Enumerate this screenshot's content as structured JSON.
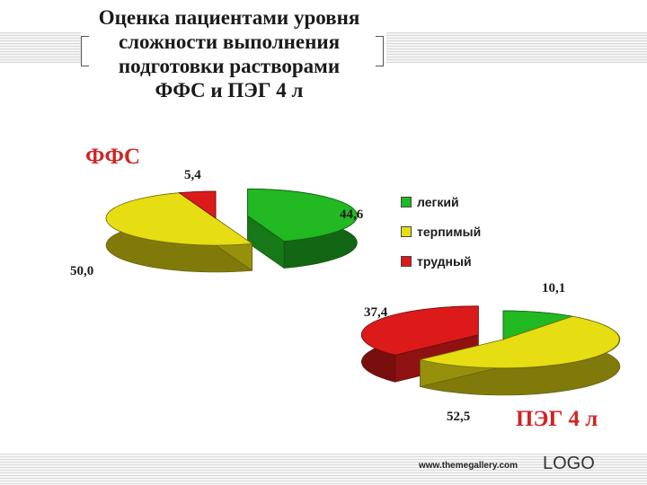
{
  "slide": {
    "title": "Оценка пациентами уровня\nсложности выполнения\nподготовки растворами\nФФС и ПЭГ 4 л",
    "footer_url": "www.themegallery.com",
    "footer_logo": "LOGO"
  },
  "colors": {
    "green": "#22b922",
    "yellow": "#e6dd12",
    "red": "#dc1a1a",
    "title_red": "#d02424"
  },
  "legend": {
    "items": [
      "легкий",
      "терпимый",
      "трудный"
    ]
  },
  "chart_data": [
    {
      "type": "pie",
      "title": "ФФС",
      "categories": [
        "легкий",
        "терпимый",
        "трудный"
      ],
      "labels": [
        "44,6",
        "50,0",
        "5,4"
      ],
      "values": [
        44.6,
        50.0,
        5.4
      ],
      "exploded": "легкий"
    },
    {
      "type": "pie",
      "title": "ПЭГ 4 л",
      "categories": [
        "легкий",
        "терпимый",
        "трудный"
      ],
      "labels": [
        "10,1",
        "52,5",
        "37,4"
      ],
      "values": [
        10.1,
        52.5,
        37.4
      ],
      "exploded": "трудный"
    }
  ]
}
